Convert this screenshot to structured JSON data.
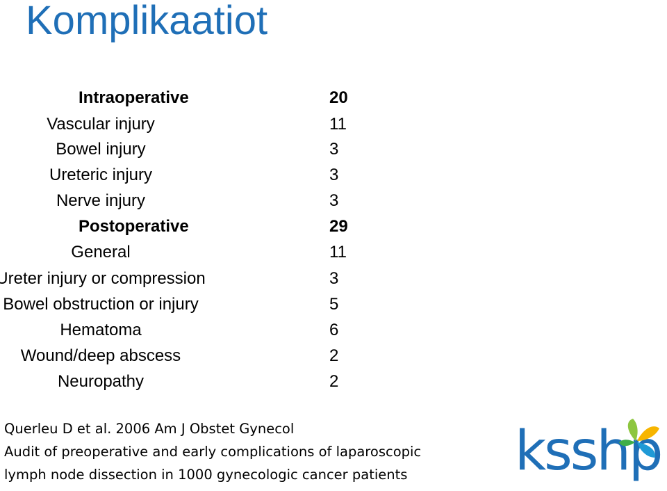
{
  "title": "Komplikaatiot",
  "sections": [
    {
      "label": "Intraoperative",
      "value": "20",
      "items": [
        {
          "label": "Vascular injury",
          "value": "11"
        },
        {
          "label": "Bowel injury",
          "value": "3"
        },
        {
          "label": "Ureteric injury",
          "value": "3"
        },
        {
          "label": "Nerve injury",
          "value": "3"
        }
      ]
    },
    {
      "label": "Postoperative",
      "value": "29",
      "items": [
        {
          "label": "General",
          "value": "11"
        },
        {
          "label": "Ureter injury or compression",
          "value": "3"
        },
        {
          "label": "Bowel obstruction or injury",
          "value": "5"
        },
        {
          "label": "Hematoma",
          "value": "6"
        },
        {
          "label": "Wound/deep abscess",
          "value": "2"
        },
        {
          "label": "Neuropathy",
          "value": "2"
        }
      ]
    }
  ],
  "citation": {
    "line1": "Querleu D et al. 2006 Am J Obstet Gynecol",
    "line2": "Audit of preoperative and early complications of laparoscopic",
    "line3": "lymph node dissection in 1000 gynecologic cancer patients"
  },
  "logo": {
    "text": "ksshp",
    "color": "#1f6fb7",
    "butterfly_colors": [
      "#8dc63f",
      "#f7b500",
      "#1f9ad6",
      "#3fae49"
    ]
  }
}
